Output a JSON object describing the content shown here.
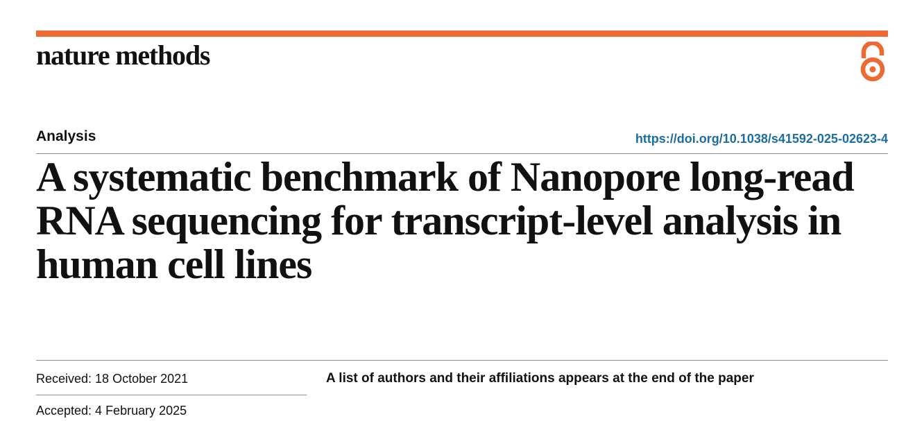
{
  "journal": {
    "name": "nature methods",
    "brand_color": "#ee6a35",
    "open_access_icon": "open-access-icon"
  },
  "article": {
    "type": "Analysis",
    "doi": "https://doi.org/10.1038/s41592-025-02623-4",
    "doi_color": "#1a6ea3",
    "title": "A systematic benchmark of Nanopore long-read RNA sequencing for transcript-level analysis in human cell lines"
  },
  "meta": {
    "received": "Received: 18 October 2021",
    "accepted": "Accepted: 4 February 2025",
    "authors_note": "A list of authors and their affiliations appears at the end of the paper"
  }
}
